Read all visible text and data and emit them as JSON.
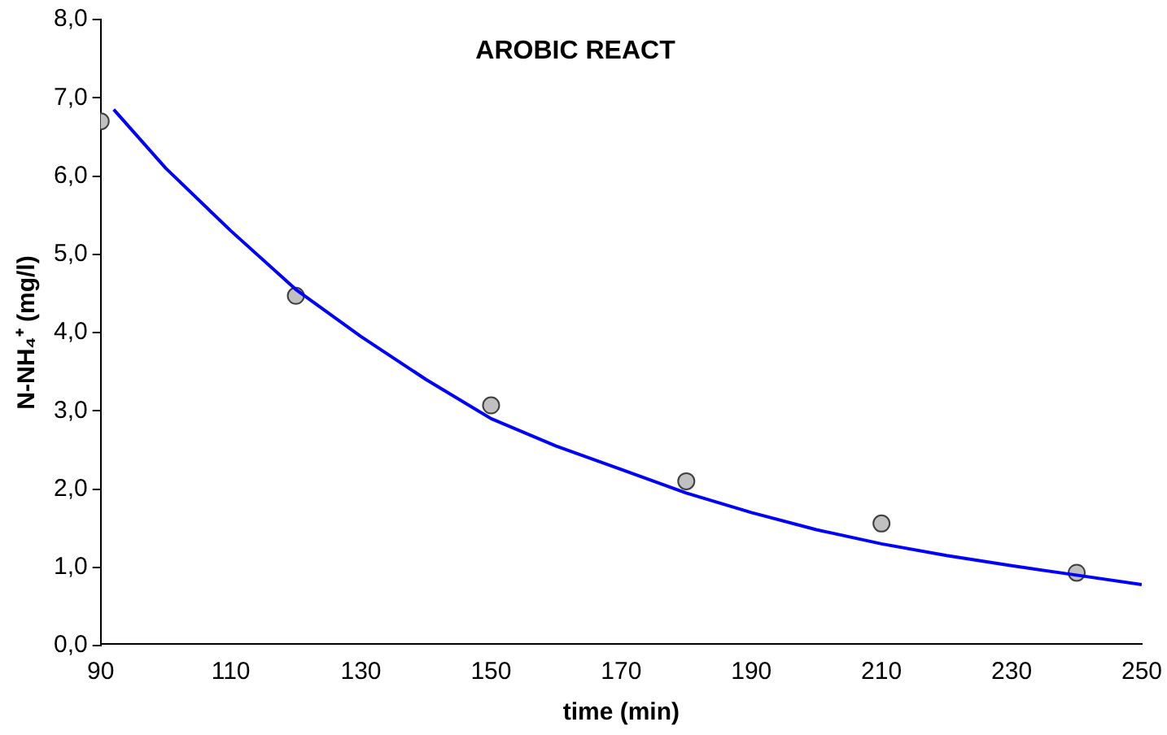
{
  "chart_data": {
    "type": "line",
    "title": "AROBIC REACT",
    "xlabel": "time (min)",
    "ylabel": "N-NH₄⁺ (mg/l)",
    "xlim": [
      90,
      250
    ],
    "xticks": [
      90,
      110,
      130,
      150,
      170,
      190,
      210,
      230,
      250
    ],
    "ylim": [
      0,
      8
    ],
    "yticks": [
      {
        "value": 0,
        "label": "0,0"
      },
      {
        "value": 1,
        "label": "1,0"
      },
      {
        "value": 2,
        "label": "2,0"
      },
      {
        "value": 3,
        "label": "3,0"
      },
      {
        "value": 4,
        "label": "4,0"
      },
      {
        "value": 5,
        "label": "5,0"
      },
      {
        "value": 6,
        "label": "6,0"
      },
      {
        "value": 7,
        "label": "7,0"
      },
      {
        "value": 8,
        "label": "8,0"
      }
    ],
    "grid": false,
    "legend": false,
    "series": [
      {
        "color": "#0000ff",
        "marker": "none",
        "line_style": "solid",
        "x": [
          92,
          100,
          110,
          120,
          130,
          140,
          150,
          160,
          170,
          180,
          190,
          200,
          210,
          220,
          230,
          240,
          250
        ],
        "values": [
          6.85,
          6.1,
          5.3,
          4.55,
          3.95,
          3.4,
          2.9,
          2.55,
          2.25,
          1.95,
          1.7,
          1.48,
          1.3,
          1.15,
          1.02,
          0.9,
          0.78
        ]
      },
      {
        "type": "scatter",
        "color": "#c0c0c0",
        "marker": "circle",
        "x": [
          90,
          120,
          150,
          180,
          210,
          240
        ],
        "values": [
          6.7,
          4.47,
          3.07,
          2.1,
          1.56,
          0.93
        ]
      }
    ]
  }
}
